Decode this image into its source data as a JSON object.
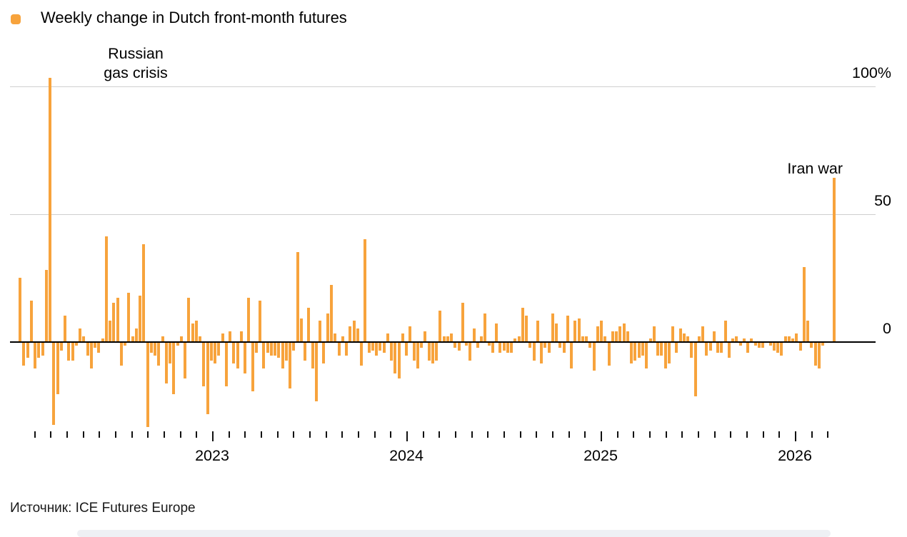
{
  "header": {
    "legend_label": "Weekly change in Dutch front-month futures",
    "legend_color": "#F7A33C"
  },
  "annotations": {
    "left": "Russian\ngas crisis",
    "right": "Iran war"
  },
  "y_axis": {
    "labels": [
      {
        "text": "100%",
        "value": 100
      },
      {
        "text": "50",
        "value": 50
      },
      {
        "text": "0",
        "value": 0
      }
    ]
  },
  "x_axis": {
    "years": [
      "2023",
      "2024",
      "2025",
      "2026"
    ],
    "minor_tick_unit": "month"
  },
  "source": {
    "text": "Источник: ICE Futures Europe"
  },
  "colors": {
    "bar": "#F7A33C",
    "gridline": "#cfcfcf",
    "zero_axis": "#000000"
  },
  "chart_data": {
    "type": "bar",
    "title": "Weekly change in Dutch front-month futures",
    "unit": "percent",
    "frequency": "weekly",
    "x_start": "2022-01",
    "x_end": "2026-03",
    "ylim": [
      -40,
      110
    ],
    "grid": "horizontal",
    "legend_position": "top-left",
    "y_ticks": [
      0,
      50,
      100
    ],
    "annotations": [
      {
        "text": "Russian gas crisis",
        "week_index": 8,
        "value": 103
      },
      {
        "text": "Iran war",
        "week_index": 217,
        "value": 64
      }
    ],
    "values": [
      25,
      -9,
      -6,
      16,
      -10,
      -6,
      -5,
      28,
      103,
      -32,
      -20,
      -3,
      10,
      -7,
      -7,
      -1,
      5,
      2,
      -5,
      -10,
      -2,
      -4,
      1,
      41,
      8,
      15,
      17,
      -9,
      -1,
      19,
      2,
      5,
      18,
      38,
      -33,
      -4,
      -5,
      -9,
      2,
      -16,
      -8,
      -20,
      -1,
      2,
      -14,
      17,
      7,
      8,
      2,
      -17,
      -28,
      -7,
      -8,
      -5,
      3,
      -17,
      4,
      -8,
      -10,
      4,
      -12,
      17,
      -19,
      -4,
      16,
      -10,
      -4,
      -5,
      -5,
      -6,
      -10,
      -7,
      -18,
      -3,
      35,
      9,
      -7,
      13,
      -10,
      -23,
      8,
      -8,
      11,
      22,
      3,
      -5,
      2,
      -5,
      6,
      8,
      5,
      -9,
      40,
      -4,
      -3,
      -5,
      -3,
      -4,
      3,
      -7,
      -12,
      -14,
      3,
      -5,
      6,
      -7,
      -10,
      -2,
      4,
      -7,
      -8,
      -7,
      12,
      2,
      2,
      3,
      -2,
      -3,
      15,
      -1,
      -7,
      5,
      -2,
      2,
      11,
      -1,
      -4,
      7,
      -4,
      -3,
      -4,
      -4,
      1,
      2,
      13,
      10,
      -2,
      -7,
      8,
      -8,
      -2,
      -4,
      11,
      7,
      -2,
      -4,
      10,
      -10,
      8,
      9,
      2,
      2,
      -2,
      -11,
      6,
      8,
      2,
      -9,
      4,
      4,
      6,
      7,
      4,
      -8,
      -7,
      -6,
      -5,
      -10,
      1,
      6,
      -5,
      -5,
      -10,
      -8,
      6,
      -4,
      5,
      3,
      2,
      -6,
      -21,
      2,
      6,
      -5,
      -3,
      4,
      -4,
      -4,
      8,
      -6,
      1,
      2,
      -1,
      1,
      -4,
      1,
      -1,
      -2,
      -2,
      0,
      -1,
      -3,
      -4,
      -5,
      2,
      2,
      1,
      3,
      -3,
      29,
      8,
      -2,
      -9,
      -10,
      -1,
      0,
      0,
      64
    ]
  }
}
